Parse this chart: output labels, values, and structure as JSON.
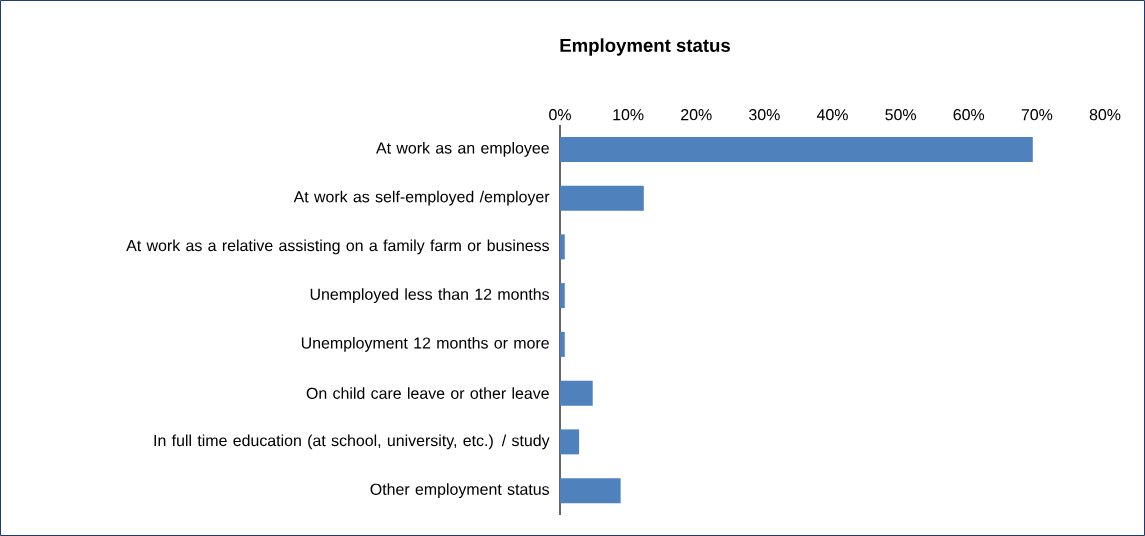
{
  "chart_data": {
    "type": "bar",
    "orientation": "horizontal",
    "title": "Employment status",
    "categories": [
      "At work as an employee",
      "At work as self-employed /employer",
      "At work as a relative assisting on a family farm or business",
      "Unemployed less than 12 months",
      "Unemployment 12 months or more",
      "On child care leave or other leave",
      "In full time education (at school, university, etc.) / study",
      "Other employment status"
    ],
    "values": [
      69.4,
      12.3,
      0.7,
      0.7,
      0.7,
      4.8,
      2.8,
      8.9
    ],
    "color": "#4f81bd",
    "xlim": [
      0,
      80
    ],
    "xticks": [
      {
        "value": 0,
        "label": "0%"
      },
      {
        "value": 10,
        "label": "10%"
      },
      {
        "value": 20,
        "label": "20%"
      },
      {
        "value": 30,
        "label": "30%"
      },
      {
        "value": 40,
        "label": "40%"
      },
      {
        "value": 50,
        "label": "50%"
      },
      {
        "value": 60,
        "label": "60%"
      },
      {
        "value": 70,
        "label": "70%"
      },
      {
        "value": 80,
        "label": "80%"
      }
    ],
    "grid": false
  }
}
